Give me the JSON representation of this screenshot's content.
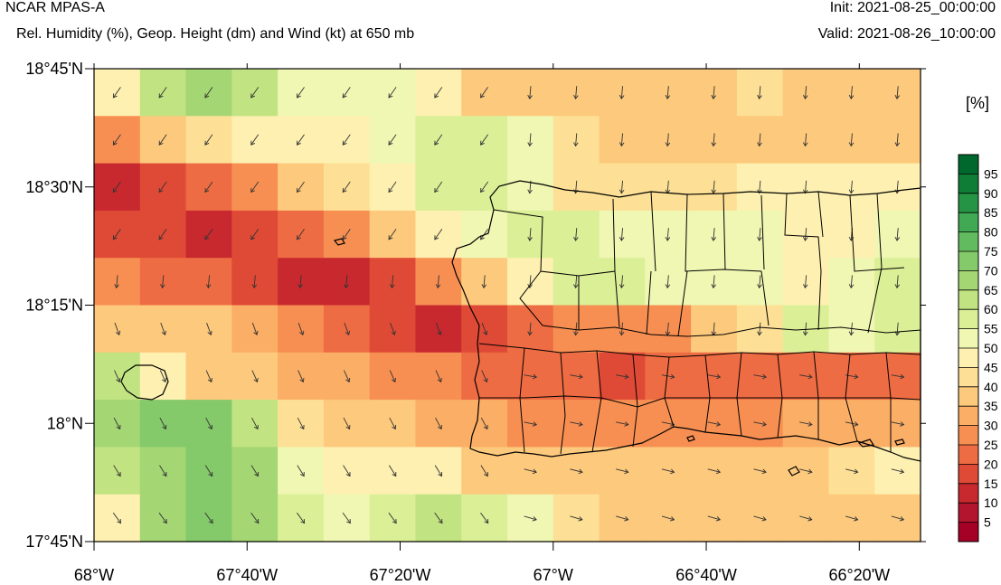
{
  "header": {
    "title": "NCAR MPAS-A",
    "subtitle": "Rel. Humidity (%), Geop. Height (dm) and Wind (kt) at 650 mb",
    "init": "Init: 2021-08-25_00:00:00",
    "valid": "Valid: 2021-08-26_10:00:00"
  },
  "map": {
    "lat_labels": [
      "18°45'N",
      "18°30'N",
      "18°15'N",
      "18°N",
      "17°45'N"
    ],
    "lon_labels": [
      "68°W",
      "67°40'W",
      "67°20'W",
      "67°W",
      "66°40'W",
      "66°20'W"
    ],
    "extent": {
      "lon_min": -68.0,
      "lon_max": -66.2,
      "lat_min": 17.75,
      "lat_max": 18.75
    },
    "grid_rows": 10,
    "grid_cols": 18,
    "rh_grid": [
      [
        47,
        62,
        67,
        62,
        52,
        52,
        52,
        47,
        37,
        37,
        37,
        37,
        37,
        37,
        42,
        37,
        37,
        37
      ],
      [
        27,
        37,
        42,
        47,
        47,
        47,
        52,
        57,
        57,
        52,
        42,
        37,
        37,
        37,
        37,
        37,
        37,
        37
      ],
      [
        12,
        17,
        22,
        27,
        37,
        42,
        47,
        57,
        57,
        52,
        42,
        42,
        42,
        42,
        47,
        47,
        47,
        47
      ],
      [
        17,
        17,
        12,
        17,
        22,
        27,
        37,
        47,
        52,
        57,
        57,
        52,
        52,
        52,
        52,
        47,
        47,
        52
      ],
      [
        27,
        22,
        22,
        17,
        12,
        12,
        17,
        27,
        37,
        47,
        57,
        57,
        52,
        52,
        52,
        47,
        52,
        57
      ],
      [
        37,
        37,
        37,
        32,
        27,
        22,
        17,
        12,
        17,
        22,
        27,
        27,
        27,
        37,
        42,
        57,
        52,
        57
      ],
      [
        62,
        47,
        37,
        37,
        32,
        32,
        27,
        27,
        22,
        22,
        22,
        17,
        22,
        22,
        22,
        22,
        22,
        22
      ],
      [
        67,
        72,
        72,
        62,
        42,
        37,
        37,
        32,
        32,
        27,
        27,
        27,
        27,
        27,
        27,
        32,
        32,
        32
      ],
      [
        62,
        67,
        72,
        67,
        52,
        47,
        47,
        47,
        37,
        37,
        37,
        37,
        37,
        37,
        37,
        37,
        42,
        47
      ],
      [
        47,
        67,
        72,
        67,
        57,
        52,
        57,
        62,
        57,
        52,
        42,
        37,
        37,
        37,
        37,
        37,
        37,
        37
      ]
    ],
    "wind": "arrows toward southwest in northwest, toward south centrally, toward east in southeast"
  },
  "colorbar": {
    "units": "[%]",
    "labels": [
      "95",
      "90",
      "85",
      "80",
      "75",
      "70",
      "65",
      "60",
      "55",
      "50",
      "45",
      "40",
      "35",
      "30",
      "25",
      "20",
      "15",
      "10",
      "5"
    ],
    "colors": [
      "#00682c",
      "#107d37",
      "#259444",
      "#41a953",
      "#63bb5f",
      "#84c96a",
      "#a4d674",
      "#c1e381",
      "#dbef97",
      "#eff7b3",
      "#fdf0b0",
      "#fde095",
      "#fdc97c",
      "#fbae66",
      "#f78f52",
      "#ee6c43",
      "#df4a36",
      "#c8292f",
      "#b3152e",
      "#a50026"
    ]
  }
}
